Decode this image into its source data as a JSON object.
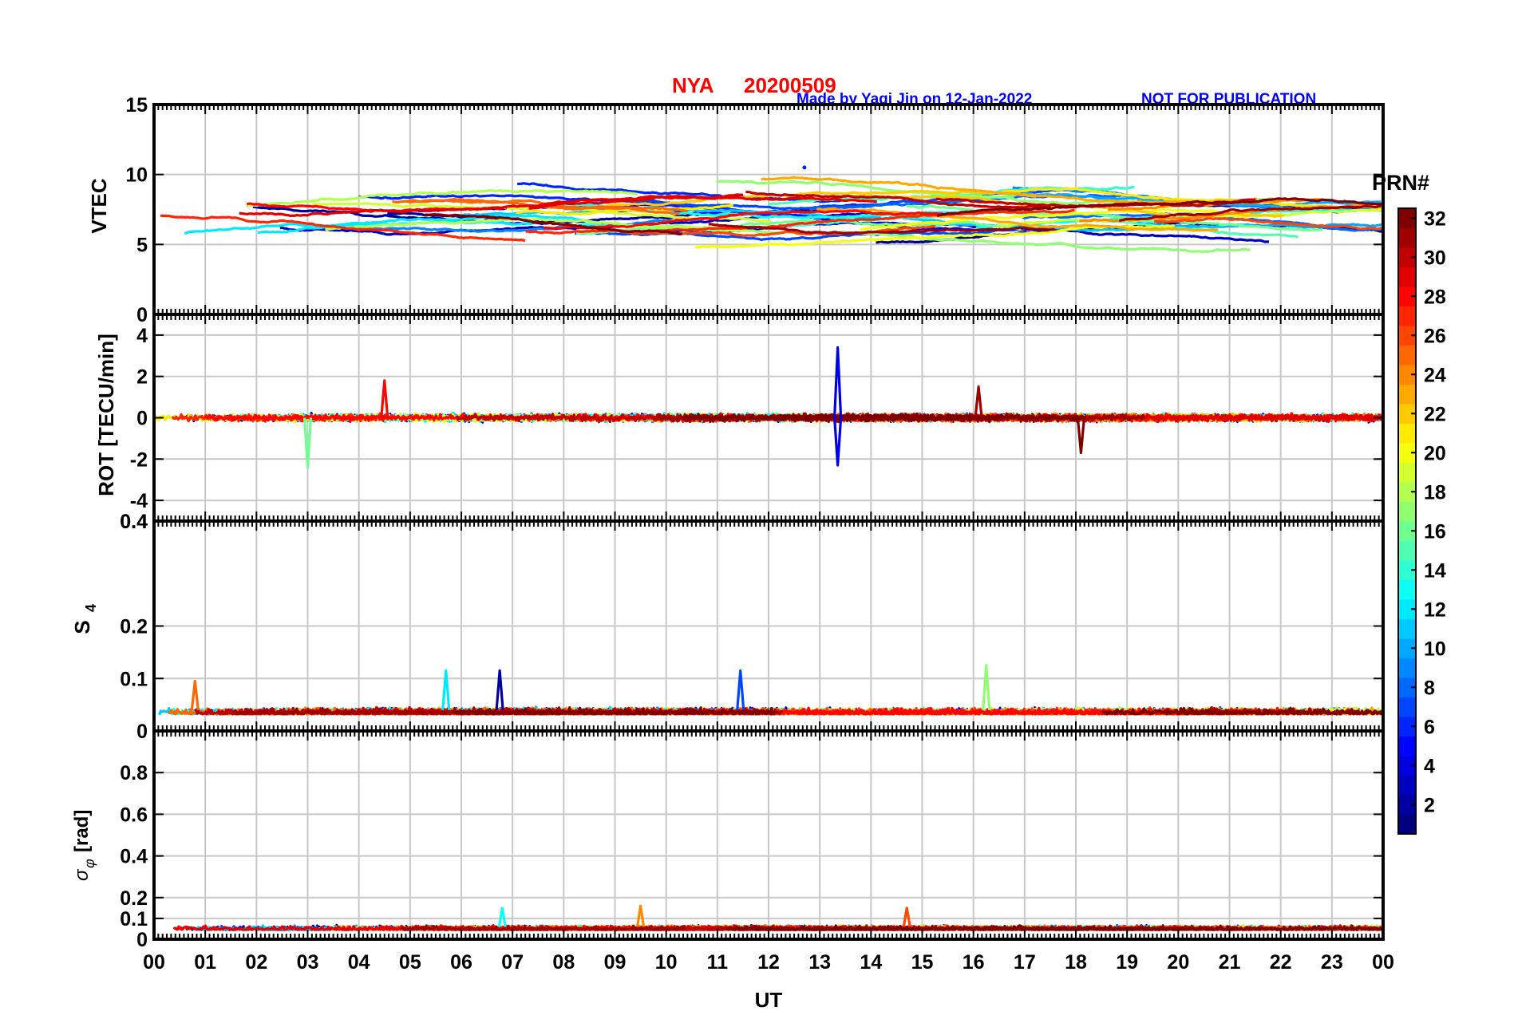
{
  "header": {
    "station": "NYA",
    "date": "20200509",
    "credit": "Made by Yaqi Jin on 12-Jan-2022",
    "notice": "NOT FOR PUBLICATION"
  },
  "colors": {
    "title": "#ff0000",
    "credit": "#0000ff",
    "axis": "#000000",
    "grid": "#c8c8c8"
  },
  "colorbar": {
    "title": "PRN#",
    "range": [
      1,
      32
    ],
    "ticks": [
      "2",
      "4",
      "6",
      "8",
      "10",
      "12",
      "14",
      "16",
      "18",
      "20",
      "22",
      "24",
      "26",
      "28",
      "30",
      "32"
    ],
    "colormap": "jet"
  },
  "chart_data": [
    {
      "type": "line",
      "title": "",
      "ylabel": "VTEC",
      "ylim": [
        0,
        15
      ],
      "yticks": [
        "0",
        "5",
        "10",
        "15"
      ],
      "grid": true,
      "series_summary": "32 PRN traces, values mostly 5–10 TECU",
      "peak": {
        "x": 12.7,
        "y": 10.5,
        "prn": 6
      },
      "typical_range": [
        5,
        9
      ]
    },
    {
      "type": "line",
      "ylabel": "ROT [TECU/min]",
      "ylim": [
        -5,
        5
      ],
      "yticks": [
        "-4",
        "-2",
        "0",
        "2",
        "4"
      ],
      "grid": true,
      "spikes": [
        {
          "x": 13.35,
          "y": 3.4,
          "prn": 4
        },
        {
          "x": 13.35,
          "y": -2.3,
          "prn": 4
        },
        {
          "x": 3.0,
          "y": -2.4,
          "prn": 16
        },
        {
          "x": 4.5,
          "y": 1.8,
          "prn": 28
        },
        {
          "x": 18.1,
          "y": -1.7,
          "prn": 32
        },
        {
          "x": 16.1,
          "y": 1.5,
          "prn": 31
        }
      ]
    },
    {
      "type": "line",
      "ylabel": "S4",
      "ylabel_main": "S",
      "ylabel_sub": "4",
      "ylim": [
        0,
        0.4
      ],
      "yticks": [
        "0",
        "0.1",
        "0.2",
        "0.4"
      ],
      "grid": true,
      "baseline": 0.04,
      "peaks": [
        {
          "x": 5.7,
          "y": 0.115,
          "prn": 12
        },
        {
          "x": 6.75,
          "y": 0.115,
          "prn": 2
        },
        {
          "x": 11.45,
          "y": 0.115,
          "prn": 7
        },
        {
          "x": 16.25,
          "y": 0.125,
          "prn": 17
        },
        {
          "x": 0.8,
          "y": 0.095,
          "prn": 25
        }
      ]
    },
    {
      "type": "line",
      "ylabel": "σφ [rad]",
      "ylabel_sigma": "σ",
      "ylabel_phi": "φ",
      "ylabel_unit": "[rad]",
      "ylim": [
        0,
        1
      ],
      "yticks": [
        "0",
        "0.1",
        "0.2",
        "0.4",
        "0.6",
        "0.8"
      ],
      "grid": true,
      "baseline": 0.06,
      "peaks": [
        {
          "x": 9.5,
          "y": 0.16,
          "prn": 24
        },
        {
          "x": 6.8,
          "y": 0.15,
          "prn": 13
        },
        {
          "x": 14.7,
          "y": 0.15,
          "prn": 26
        }
      ]
    }
  ],
  "xaxis": {
    "label": "UT",
    "ticks": [
      "00",
      "01",
      "02",
      "03",
      "04",
      "05",
      "06",
      "07",
      "08",
      "09",
      "10",
      "11",
      "12",
      "13",
      "14",
      "15",
      "16",
      "17",
      "18",
      "19",
      "20",
      "21",
      "22",
      "23",
      "00"
    ]
  }
}
